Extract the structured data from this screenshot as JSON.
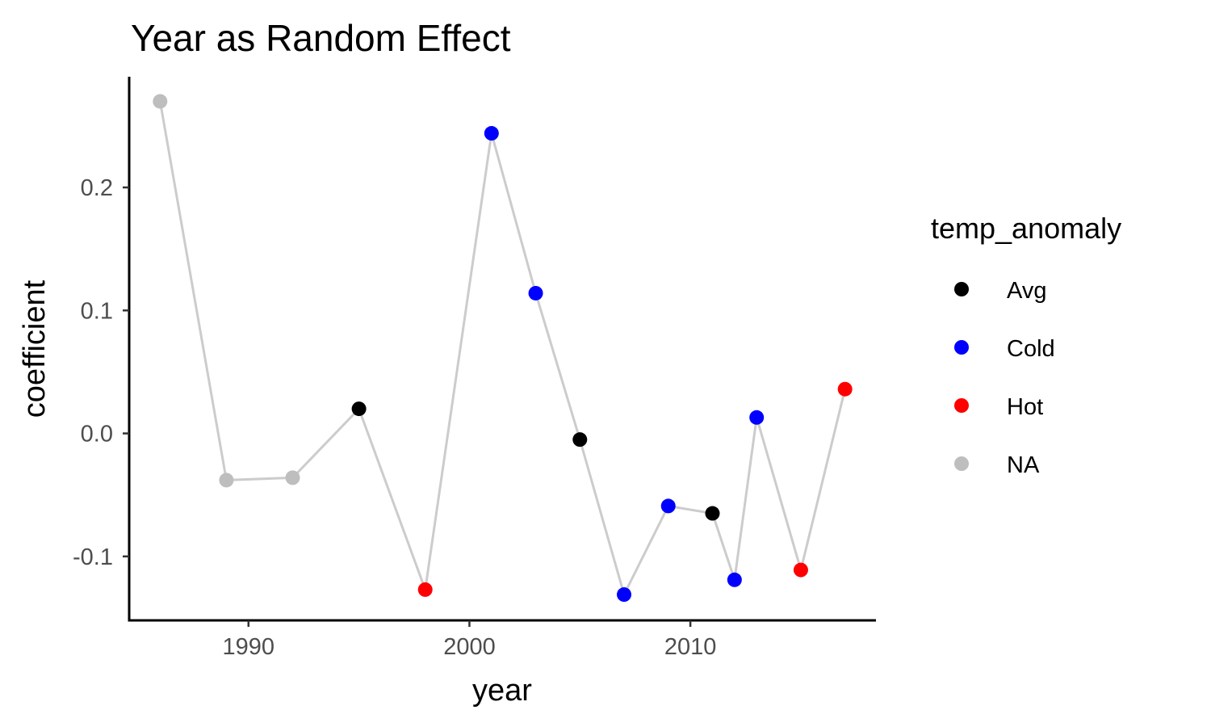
{
  "chart_data": {
    "type": "scatter",
    "title": "Year as Random Effect",
    "xlabel": "year",
    "ylabel": "coefficient",
    "xlim": [
      1984.6,
      2018.4
    ],
    "ylim": [
      -0.152,
      0.29
    ],
    "x_ticks": [
      {
        "value": 1990,
        "label": "1990"
      },
      {
        "value": 2000,
        "label": "2000"
      },
      {
        "value": 2010,
        "label": "2010"
      }
    ],
    "y_ticks": [
      {
        "value": -0.1,
        "label": "-0.1"
      },
      {
        "value": 0.0,
        "label": "0.0"
      },
      {
        "value": 0.1,
        "label": "0.1"
      },
      {
        "value": 0.2,
        "label": "0.2"
      }
    ],
    "grid": false,
    "connecting_line_color": "#cccccc",
    "legend": {
      "title": "temp_anomaly",
      "position": "right",
      "items": [
        {
          "label": "Avg",
          "color": "#000000"
        },
        {
          "label": "Cold",
          "color": "#0000ff"
        },
        {
          "label": "Hot",
          "color": "#ff0000"
        },
        {
          "label": "NA",
          "color": "#bebebe"
        }
      ]
    },
    "points": [
      {
        "x": 1986,
        "y": 0.27,
        "group": "NA"
      },
      {
        "x": 1989,
        "y": -0.038,
        "group": "NA"
      },
      {
        "x": 1992,
        "y": -0.036,
        "group": "NA"
      },
      {
        "x": 1995,
        "y": 0.02,
        "group": "Avg"
      },
      {
        "x": 1998,
        "y": -0.127,
        "group": "Hot"
      },
      {
        "x": 2001,
        "y": 0.244,
        "group": "Cold"
      },
      {
        "x": 2003,
        "y": 0.114,
        "group": "Cold"
      },
      {
        "x": 2005,
        "y": -0.005,
        "group": "Avg"
      },
      {
        "x": 2007,
        "y": -0.131,
        "group": "Cold"
      },
      {
        "x": 2009,
        "y": -0.059,
        "group": "Cold"
      },
      {
        "x": 2011,
        "y": -0.065,
        "group": "Avg"
      },
      {
        "x": 2012,
        "y": -0.119,
        "group": "Cold"
      },
      {
        "x": 2013,
        "y": 0.013,
        "group": "Cold"
      },
      {
        "x": 2015,
        "y": -0.111,
        "group": "Hot"
      },
      {
        "x": 2017,
        "y": 0.036,
        "group": "Hot"
      }
    ]
  }
}
